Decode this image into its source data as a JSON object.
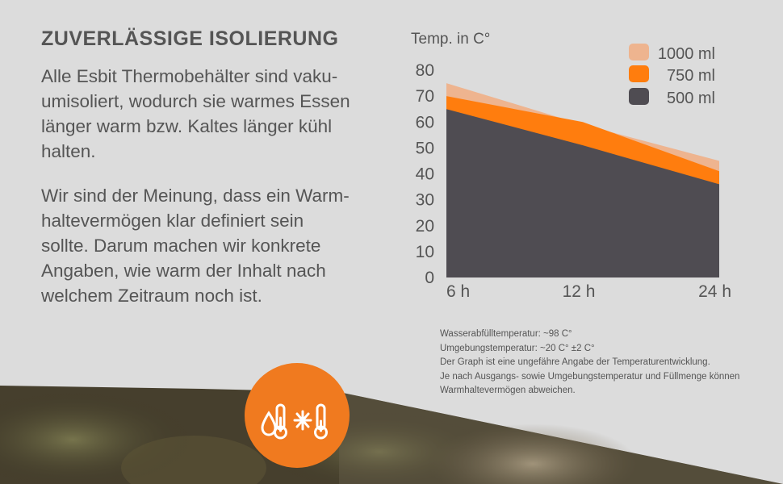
{
  "text": {
    "heading": "ZUVERLÄSSIGE ISOLIERUNG",
    "paragraph1": "Alle Esbit Thermobehälter sind vaku-\numisoliert, wodurch sie warmes Essen\nlänger warm bzw. Kaltes länger kühl\nhalten.",
    "paragraph2": "Wir sind der Meinung, dass ein Warm-\nhaltevermögen klar definiert sein\nsollte. Darum machen wir konkrete\nAngaben, wie warm der Inhalt nach\nwelchem Zeitraum noch ist."
  },
  "notes": [
    "Wasserabfülltemperatur: ~98 C°",
    "Umgebungstemperatur: ~20 C° ±2 C°",
    "Der Graph ist eine ungefähre Angabe der Temperaturentwicklung.",
    "Je nach Ausgangs- sowie Umgebungstemperatur und Füllmenge können",
    "Warmhaltevermögen abweichen."
  ],
  "badge": {
    "icons": [
      "hot-drop-thermometer-icon",
      "snowflake-thermometer-icon"
    ],
    "color": "#f07a1f"
  },
  "chart_data": {
    "type": "area",
    "title": "",
    "ylabel": "Temp. in C°",
    "xlabel": "",
    "x": [
      "6 h",
      "12 h",
      "24 h"
    ],
    "ylim": [
      0,
      80
    ],
    "yticks": [
      "0",
      "10",
      "20",
      "30",
      "40",
      "50",
      "60",
      "70",
      "80"
    ],
    "legend_position": "top-right",
    "grid": false,
    "series": [
      {
        "name": "1000 ml",
        "values": [
          75,
          59,
          45
        ],
        "color": "#eeb48f"
      },
      {
        "name": "750 ml",
        "values": [
          70,
          60,
          41
        ],
        "color": "#ff7d0e"
      },
      {
        "name": "500 ml",
        "values": [
          65,
          51,
          36
        ],
        "color": "#4f4c52"
      }
    ]
  }
}
